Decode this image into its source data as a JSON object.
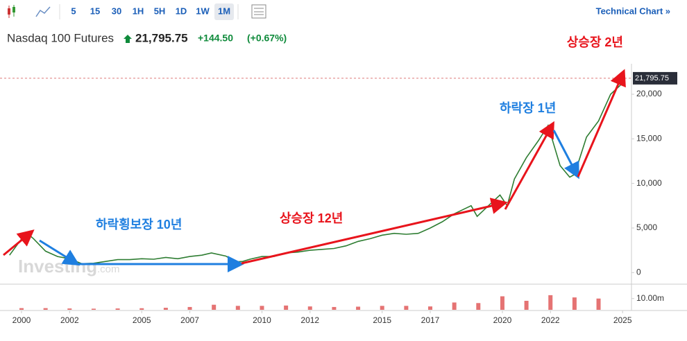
{
  "toolbar": {
    "intervals": [
      "5",
      "15",
      "30",
      "1H",
      "5H",
      "1D",
      "1W",
      "1M"
    ],
    "active": "1M",
    "technical": "Technical Chart »"
  },
  "header": {
    "name": "Nasdaq 100 Futures",
    "change": "+144.50",
    "change_pct": "(+0.67%)"
  },
  "watermark": {
    "brand": "Investing",
    "suffix": ".com"
  },
  "annotations": [
    {
      "text": "상승장 2년",
      "color": "#e8141c"
    },
    {
      "text": "하락장 1년",
      "color": "#1f7fe0"
    },
    {
      "text": "하락횡보장 10년",
      "color": "#1f7fe0"
    },
    {
      "text": "상승장 12년",
      "color": "#e8141c"
    }
  ],
  "chart_data": [
    {
      "type": "line",
      "color": "#2e7d32",
      "grid": false,
      "last_price": {
        "value": 21795.75,
        "label": "21,795.75"
      },
      "x": [
        1999.5,
        2000.2,
        2000.5,
        2001.0,
        2001.5,
        2002.0,
        2002.5,
        2003.0,
        2003.5,
        2004.0,
        2004.5,
        2005.0,
        2005.5,
        2006.0,
        2006.5,
        2007.0,
        2007.5,
        2007.9,
        2008.5,
        2008.9,
        2009.2,
        2009.5,
        2010.0,
        2010.5,
        2011.0,
        2011.5,
        2012.0,
        2012.5,
        2013.0,
        2013.5,
        2014.0,
        2014.5,
        2015.0,
        2015.5,
        2016.0,
        2016.5,
        2017.0,
        2017.5,
        2018.0,
        2018.7,
        2018.95,
        2019.5,
        2019.9,
        2020.2,
        2020.5,
        2021.0,
        2021.5,
        2021.9,
        2022.4,
        2022.8,
        2023.0,
        2023.5,
        2024.0,
        2024.5,
        2024.9,
        2025.1
      ],
      "values": [
        1950,
        4500,
        3800,
        2400,
        1800,
        1550,
        1000,
        1050,
        1250,
        1450,
        1450,
        1550,
        1500,
        1700,
        1550,
        1800,
        1950,
        2200,
        1850,
        1200,
        1250,
        1500,
        1800,
        1800,
        2200,
        2300,
        2500,
        2600,
        2700,
        3000,
        3500,
        3800,
        4200,
        4400,
        4300,
        4400,
        5000,
        5700,
        6600,
        7500,
        6300,
        7700,
        8700,
        7500,
        10500,
        12900,
        14800,
        16500,
        12000,
        10700,
        11000,
        15200,
        17000,
        20000,
        21000,
        21795.75
      ],
      "xlim": [
        1999.105,
        2025.37
      ],
      "ylim": [
        -1300,
        22800
      ],
      "xticks": [
        2000,
        2002,
        2005,
        2007,
        2010,
        2012,
        2015,
        2017,
        2020,
        2022,
        2025
      ],
      "yticks": [
        0,
        {
          "value": 5000,
          "label": "5,000"
        },
        {
          "value": 10000,
          "label": "10,000"
        },
        {
          "value": 15000,
          "label": "15,000"
        },
        {
          "value": 20000,
          "label": "20,000"
        }
      ]
    },
    {
      "type": "bar",
      "color": "#e57373",
      "x": [
        2000,
        2001,
        2002,
        2003,
        2004,
        2005,
        2006,
        2007,
        2008,
        2009,
        2010,
        2011,
        2012,
        2013,
        2014,
        2015,
        2016,
        2017,
        2018,
        2019,
        2020,
        2021,
        2022,
        2023,
        2024
      ],
      "values": [
        1500000,
        1500000,
        1200000,
        1000000,
        1200000,
        1400000,
        1800000,
        2500000,
        4500000,
        3500000,
        3500000,
        3800000,
        3000000,
        2500000,
        2800000,
        3500000,
        3500000,
        3000000,
        6500000,
        6000000,
        12000000,
        8000000,
        13000000,
        11000000,
        10000000
      ],
      "xlim": [
        1999.105,
        2025.37
      ],
      "ylim": [
        0,
        16000000
      ],
      "yticks": [
        {
          "value": 10000000,
          "label": "10.00m"
        }
      ]
    }
  ]
}
